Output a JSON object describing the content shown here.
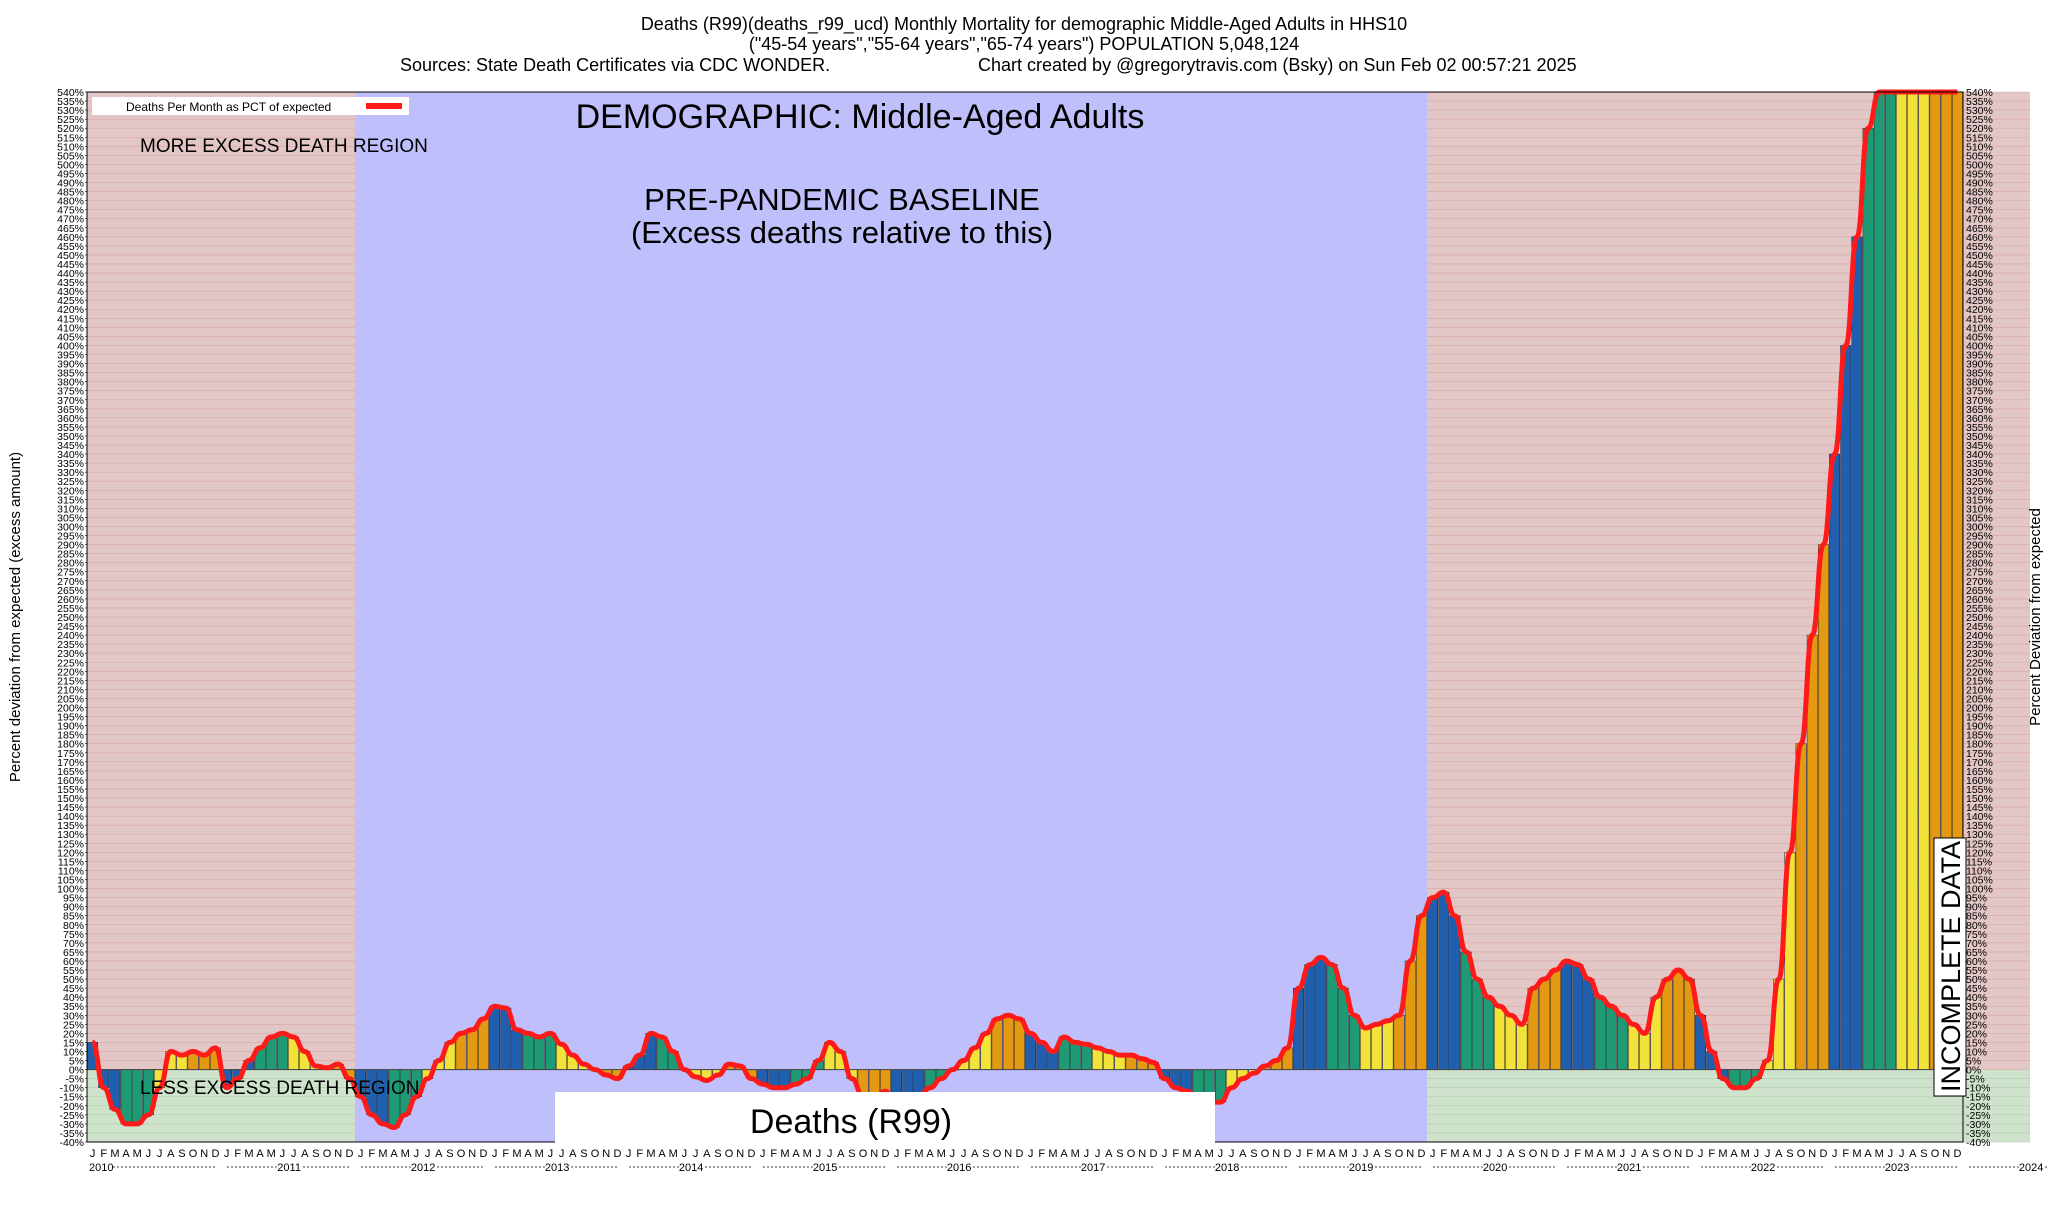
{
  "header": {
    "line1": "Deaths (R99)(deaths_r99_ucd) Monthly Mortality for demographic Middle-Aged Adults in HHS10",
    "line2": "(\"45-54 years\",\"55-64 years\",\"65-74 years\") POPULATION 5,048,124",
    "line3_left": "Sources: State Death Certificates via CDC WONDER.",
    "line3_right": "Chart created by @gregorytravis.com (Bsky) on Sun Feb 02 00:57:21 2025"
  },
  "annotations": {
    "demographic": "DEMOGRAPHIC: Middle-Aged Adults",
    "baseline_line1": "PRE-PANDEMIC BASELINE",
    "baseline_line2": "(Excess deaths relative to this)",
    "more_excess": "MORE EXCESS DEATH REGION",
    "less_excess": "LESS EXCESS DEATH REGION",
    "incomplete": "INCOMPLETE DATA",
    "cause": "Deaths (R99)"
  },
  "colors": {
    "excess_region": "#e3c6c6",
    "baseline_region": "#bfbffc",
    "less_region": "#cfe3cc",
    "line": "#ff1a1a",
    "bar_palette": [
      "#1f5fae",
      "#1e9a74",
      "#f2e33a",
      "#e39a12"
    ]
  },
  "chart_data": {
    "type": "bar",
    "legend": {
      "label": "Deaths Per Month as PCT of expected",
      "position": "top-left"
    },
    "ylabel_left": "Percent deviation from expected (excess amount)",
    "ylabel_right": "Percent Deviation from expected",
    "ylim": [
      -40,
      540
    ],
    "ytick_step": 5,
    "grid": true,
    "years": [
      "2010",
      "2011",
      "2012",
      "2013",
      "2014",
      "2015",
      "2016",
      "2017",
      "2018",
      "2019",
      "2020",
      "2021",
      "2022",
      "2023",
      "2024"
    ],
    "month_letters": [
      "J",
      "F",
      "M",
      "A",
      "M",
      "J",
      "J",
      "A",
      "S",
      "O",
      "N",
      "D"
    ],
    "baseline_period": [
      "2012-01",
      "2019-12"
    ],
    "incomplete_period": [
      "2024-07",
      "2024-12"
    ],
    "series": [
      {
        "name": "Deaths Per Month as PCT of expected",
        "values": [
          15,
          -10,
          -22,
          -30,
          -30,
          -25,
          -10,
          10,
          8,
          10,
          8,
          12,
          -10,
          -5,
          5,
          12,
          18,
          20,
          18,
          10,
          2,
          1,
          3,
          -5,
          -15,
          -25,
          -30,
          -32,
          -25,
          -15,
          -5,
          5,
          15,
          20,
          22,
          28,
          35,
          34,
          22,
          20,
          18,
          20,
          14,
          8,
          3,
          0,
          -3,
          -5,
          2,
          8,
          20,
          18,
          10,
          0,
          -4,
          -6,
          -3,
          3,
          2,
          -5,
          -8,
          -10,
          -10,
          -8,
          -5,
          5,
          15,
          10,
          -5,
          -15,
          -15,
          -12,
          -20,
          -18,
          -15,
          -10,
          -5,
          0,
          5,
          12,
          20,
          28,
          30,
          28,
          20,
          15,
          10,
          18,
          15,
          14,
          12,
          10,
          8,
          8,
          6,
          4,
          -5,
          -10,
          -12,
          -15,
          -18,
          -18,
          -10,
          -5,
          -2,
          2,
          5,
          12,
          45,
          58,
          62,
          58,
          45,
          30,
          23,
          25,
          27,
          30,
          60,
          85,
          95,
          98,
          85,
          65,
          50,
          40,
          35,
          30,
          25,
          45,
          50,
          55,
          60,
          58,
          50,
          40,
          35,
          30,
          25,
          20,
          40,
          50,
          55,
          50,
          30,
          10,
          -5,
          -10,
          -10,
          -5,
          5,
          50,
          120,
          180,
          240,
          290,
          340,
          400,
          460,
          520,
          545,
          545,
          545,
          545,
          545,
          545,
          545,
          545
        ]
      }
    ]
  }
}
